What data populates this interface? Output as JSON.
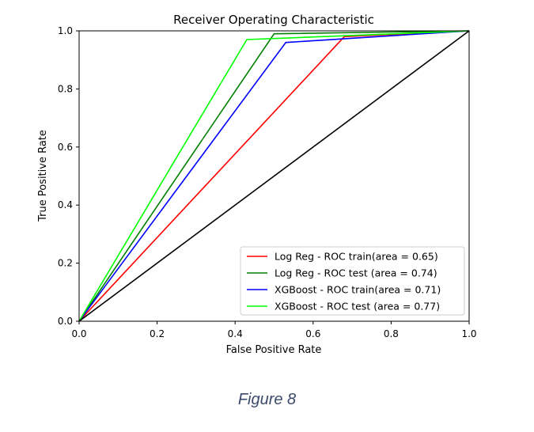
{
  "caption": "Figure 8",
  "chart_data": {
    "type": "line",
    "title": "Receiver Operating Characteristic",
    "xlabel": "False Positive Rate",
    "ylabel": "True Positive Rate",
    "xlim": [
      0.0,
      1.0
    ],
    "ylim": [
      0.0,
      1.0
    ],
    "xticks": [
      "0.0",
      "0.2",
      "0.4",
      "0.6",
      "0.8",
      "1.0"
    ],
    "yticks": [
      "0.0",
      "0.2",
      "0.4",
      "0.6",
      "0.8",
      "1.0"
    ],
    "grid": false,
    "legend_position": "lower-right",
    "series": [
      {
        "name": "Log Reg - ROC train(area = 0.65)",
        "color": "#ff0000",
        "x": [
          0.0,
          0.68,
          1.0
        ],
        "y": [
          0.0,
          0.98,
          1.0
        ]
      },
      {
        "name": "Log Reg - ROC test (area = 0.74)",
        "color": "#008000",
        "x": [
          0.0,
          0.5,
          1.0
        ],
        "y": [
          0.0,
          0.99,
          1.0
        ]
      },
      {
        "name": "XGBoost - ROC train(area = 0.71)",
        "color": "#0000ff",
        "x": [
          0.0,
          0.53,
          1.0
        ],
        "y": [
          0.0,
          0.96,
          1.0
        ]
      },
      {
        "name": "XGBoost - ROC test (area = 0.77)",
        "color": "#00ff00",
        "x": [
          0.0,
          0.43,
          1.0
        ],
        "y": [
          0.0,
          0.97,
          1.0
        ]
      }
    ],
    "reference_line": {
      "color": "#000000",
      "x": [
        0.0,
        1.0
      ],
      "y": [
        0.0,
        1.0
      ]
    }
  }
}
